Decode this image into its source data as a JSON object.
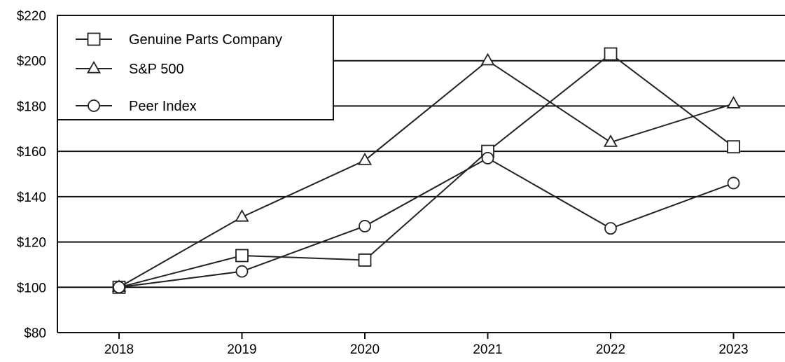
{
  "chart_data": {
    "type": "line",
    "title": "",
    "xlabel": "",
    "ylabel": "",
    "categories": [
      "2018",
      "2019",
      "2020",
      "2021",
      "2022",
      "2023"
    ],
    "ylim": [
      80,
      220
    ],
    "y_ticks": [
      80,
      100,
      120,
      140,
      160,
      180,
      200,
      220
    ],
    "y_tick_labels": [
      "$80",
      "$100",
      "$120",
      "$140",
      "$160",
      "$180",
      "$200",
      "$220"
    ],
    "grid": "horizontal",
    "legend_position": "top-left",
    "series": [
      {
        "name": "Genuine Parts Company",
        "marker": "square",
        "values": [
          100,
          114,
          112,
          160,
          203,
          162
        ]
      },
      {
        "name": "S&P 500",
        "marker": "triangle",
        "values": [
          100,
          131,
          156,
          200,
          164,
          181
        ]
      },
      {
        "name": "Peer Index",
        "marker": "circle",
        "values": [
          100,
          107,
          127,
          157,
          126,
          146
        ]
      }
    ],
    "colors": {
      "line": "#222222",
      "marker_fill": "#ffffff",
      "grid": "#111111"
    }
  }
}
